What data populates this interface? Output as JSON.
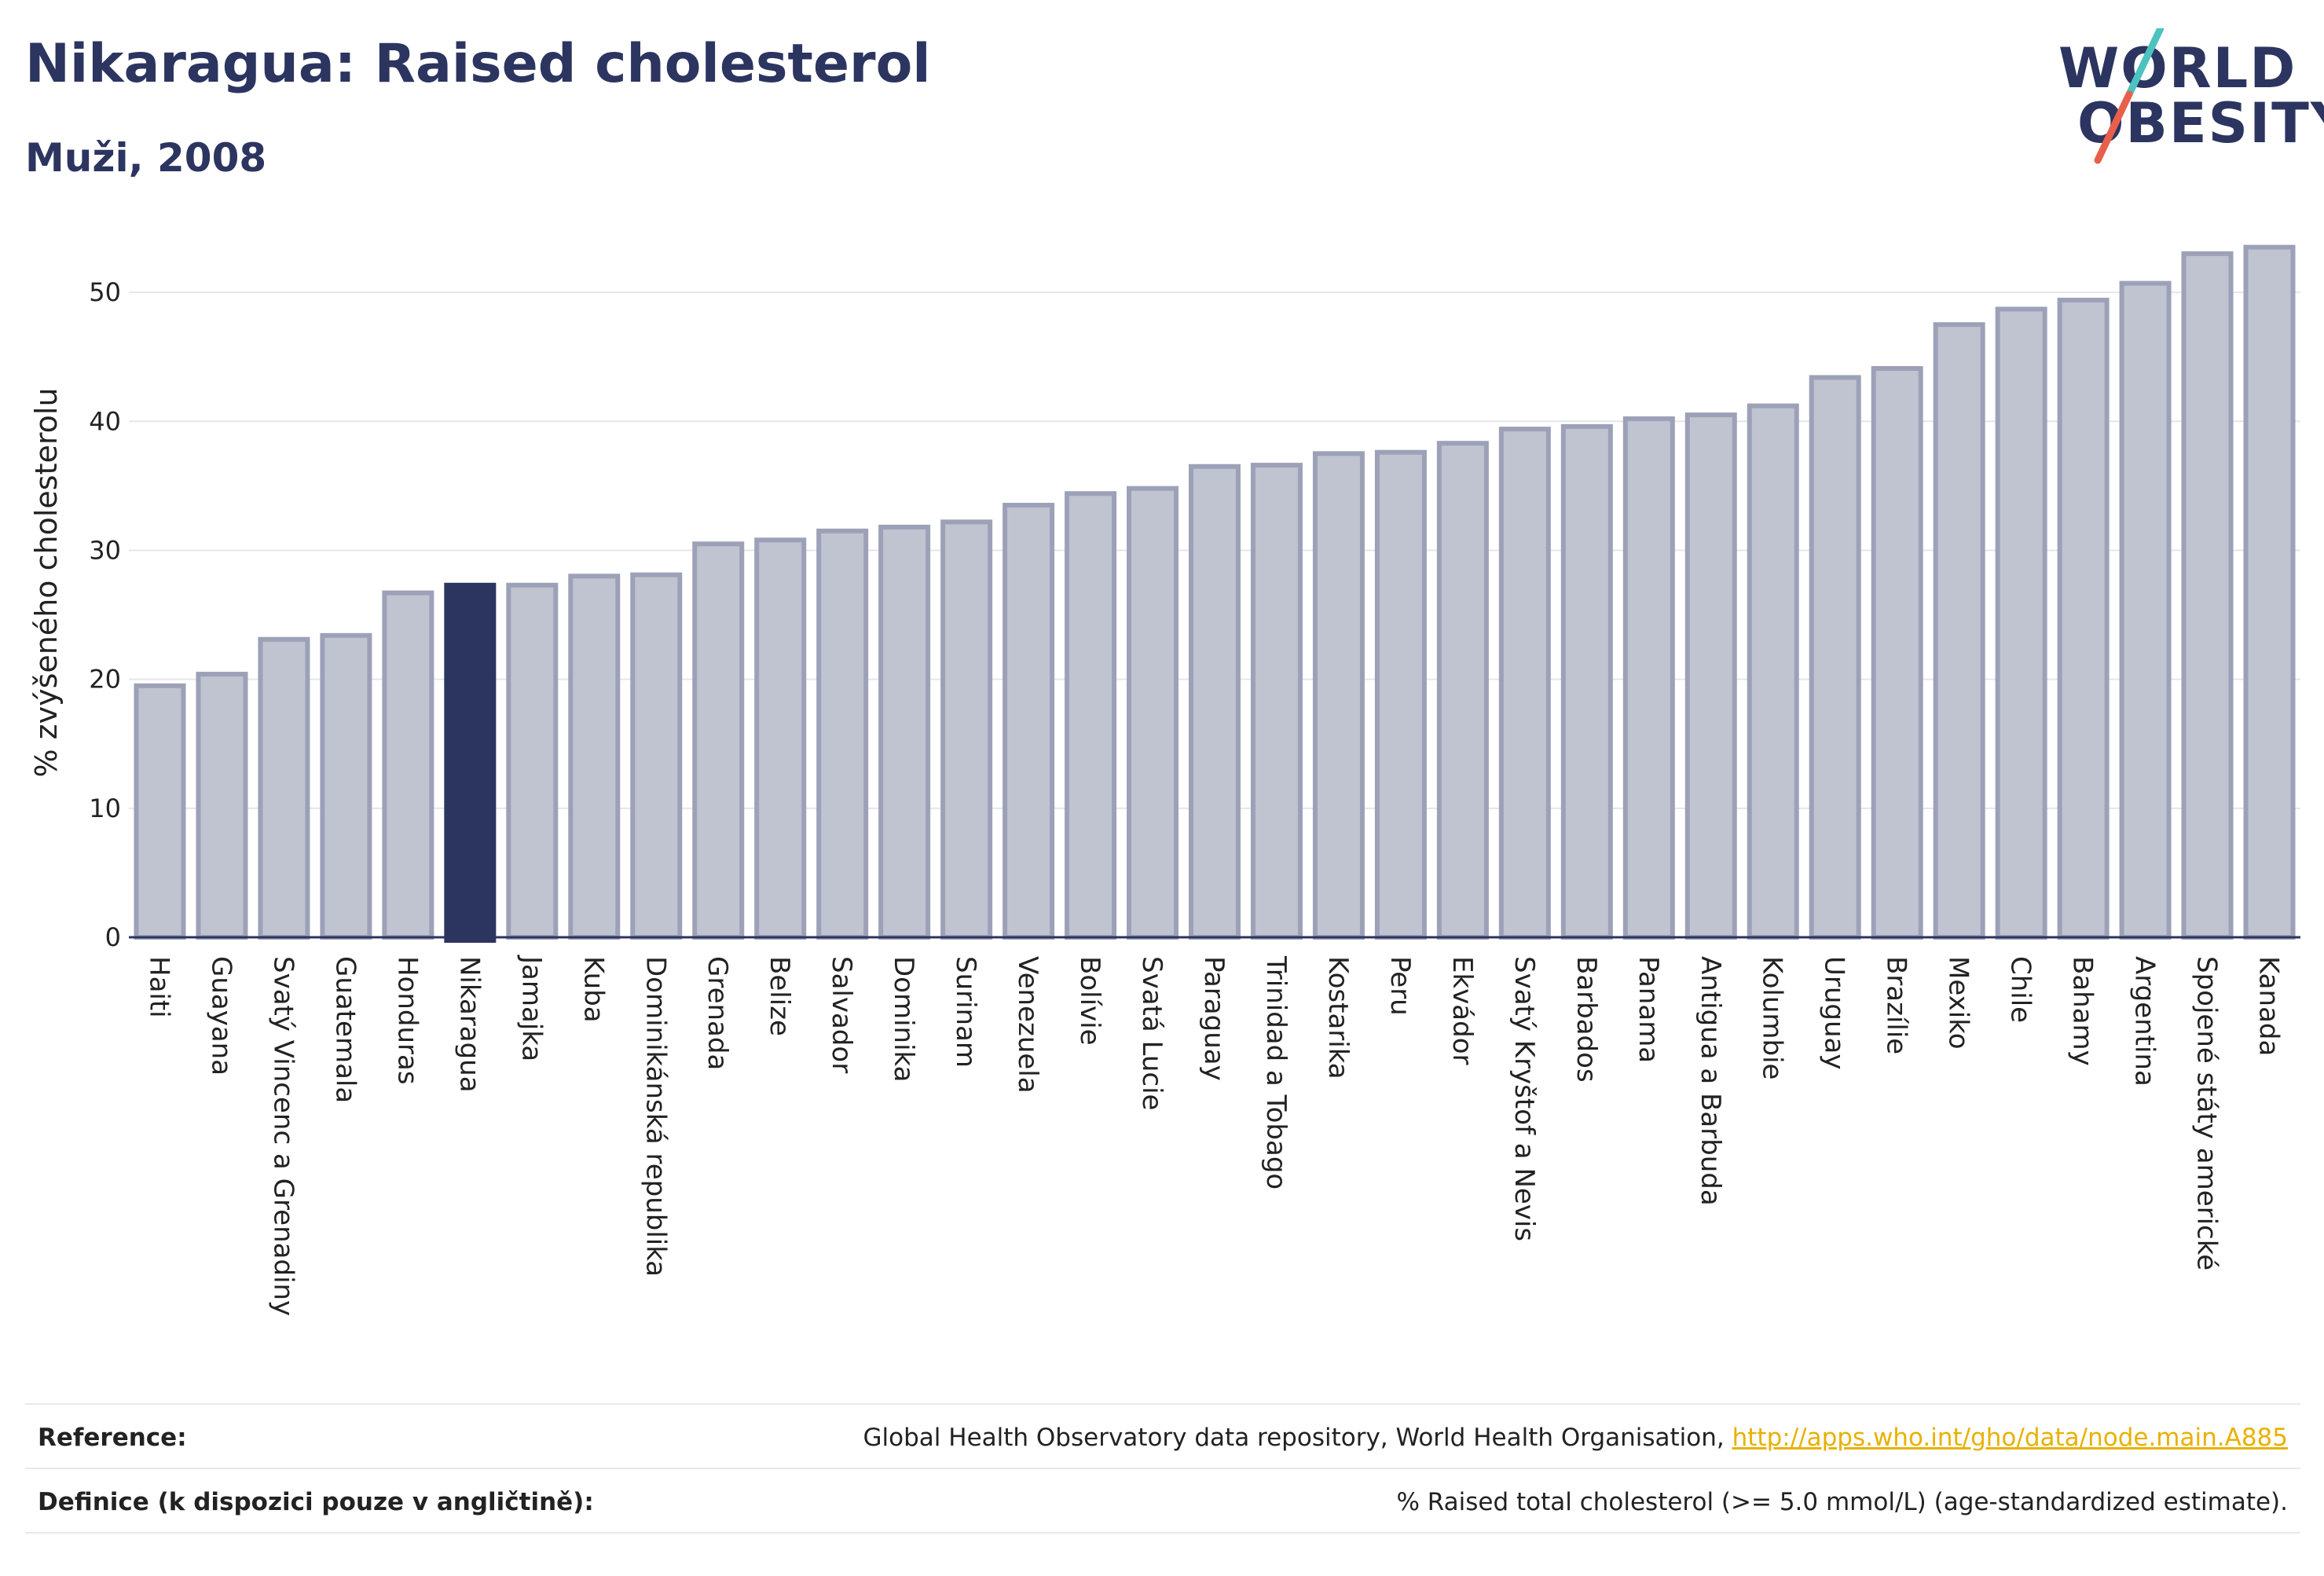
{
  "header": {
    "title": "Nikaragua: Raised cholesterol",
    "subtitle": "Muži, 2008"
  },
  "logo": {
    "line1": "WORLD",
    "line2": "OBESITY",
    "slash_colors": [
      "#4cc3c0",
      "#e8604c"
    ]
  },
  "colors": {
    "bar": "#c0c3d0",
    "bar_border": "#9da1b8",
    "highlight": "#2c3560",
    "grid": "#e4e6ec",
    "axis": "#2c3560",
    "link": "#e8b100"
  },
  "chart_data": {
    "type": "bar",
    "title": "Nikaragua: Raised cholesterol",
    "subtitle": "Muži, 2008",
    "xlabel": "",
    "ylabel": "% zvýšeného cholesterolu",
    "ylim": [
      0,
      55
    ],
    "yticks": [
      0,
      10,
      20,
      30,
      40,
      50
    ],
    "grid": true,
    "highlight": "Nikaragua",
    "categories": [
      "Haiti",
      "Guayana",
      "Svatý Vincenc a Grenadiny",
      "Guatemala",
      "Honduras",
      "Nikaragua",
      "Jamajka",
      "Kuba",
      "Dominikánská republika",
      "Grenada",
      "Belize",
      "Salvador",
      "Dominika",
      "Surinam",
      "Venezuela",
      "Bolívie",
      "Svatá Lucie",
      "Paraguay",
      "Trinidad a Tobago",
      "Kostarika",
      "Peru",
      "Ekvádor",
      "Svatý Kryštof a Nevis",
      "Barbados",
      "Panama",
      "Antigua a Barbuda",
      "Kolumbie",
      "Uruguay",
      "Brazílie",
      "Mexiko",
      "Chile",
      "Bahamy",
      "Argentina",
      "Spojené státy americké",
      "Kanada"
    ],
    "values": [
      19.5,
      20.4,
      23.1,
      23.4,
      26.7,
      27.3,
      27.3,
      28.0,
      28.1,
      30.5,
      30.8,
      31.5,
      31.8,
      32.2,
      33.5,
      34.4,
      34.8,
      36.5,
      36.6,
      37.5,
      37.6,
      38.3,
      39.4,
      39.6,
      40.2,
      40.5,
      41.2,
      43.4,
      44.1,
      47.5,
      48.7,
      49.4,
      50.7,
      53.0,
      53.5
    ]
  },
  "footer": {
    "reference_label": "Reference:",
    "reference_text": "Global Health Observatory data repository, World Health Organisation, ",
    "reference_link": "http://apps.who.int/gho/data/node.main.A885",
    "definition_label": "Definice (k dispozici pouze v angličtině):",
    "definition_text": "% Raised total cholesterol (>= 5.0 mmol/L) (age-standardized estimate)."
  }
}
